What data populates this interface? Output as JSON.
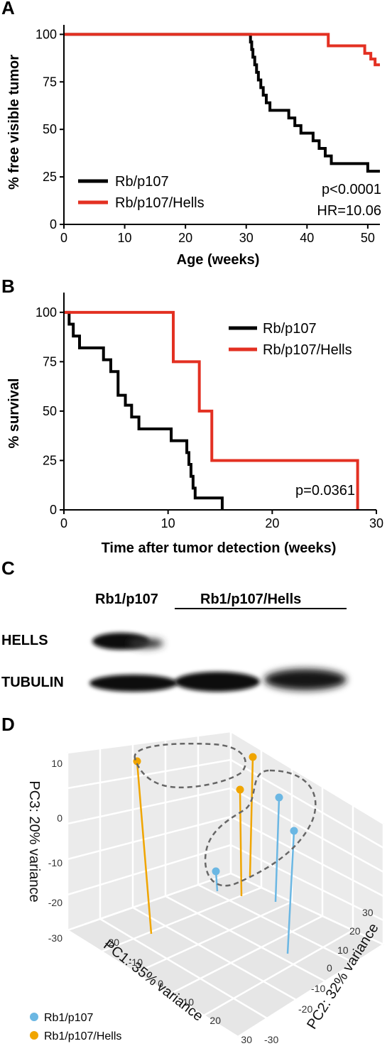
{
  "chart_data": [
    {
      "panel": "A",
      "type": "line",
      "xlabel": "Age (weeks)",
      "ylabel": "% free visible tumor",
      "xlim": [
        0,
        52
      ],
      "ylim": [
        0,
        105
      ],
      "xticks": [
        "0",
        "10",
        "20",
        "30",
        "40",
        "50"
      ],
      "yticks": [
        "0",
        "25",
        "50",
        "75",
        "100"
      ],
      "legend_position": "bottom-left",
      "series": [
        {
          "name": "Rb/p107",
          "color": "#000000",
          "x": [
            0,
            30.5,
            30.7,
            30.9,
            31.1,
            31.4,
            31.7,
            32.0,
            32.4,
            32.8,
            33.3,
            33.9,
            34.5,
            35.2,
            36.0,
            37.0,
            38.0,
            39.0,
            40.0,
            41.0,
            42.0,
            43.0,
            44.0,
            45.0,
            46.0,
            47.0,
            48.0,
            50.0,
            52.0
          ],
          "y": [
            100,
            100,
            96,
            92,
            88,
            84,
            80,
            76,
            72,
            68,
            64,
            60,
            60,
            60,
            60,
            56,
            52,
            48,
            48,
            44,
            40,
            36,
            32,
            32,
            32,
            32,
            32,
            28,
            28
          ]
        },
        {
          "name": "Rb/p107/Hells",
          "color": "#e33022",
          "x": [
            0,
            43.5,
            43.5,
            49.5,
            49.5,
            50.5,
            50.5,
            51.2,
            51.2,
            52
          ],
          "y": [
            100,
            100,
            94,
            94,
            90,
            90,
            87,
            87,
            84,
            84
          ]
        }
      ],
      "annotations": [
        "p<0.0001",
        "HR=10.06"
      ]
    },
    {
      "panel": "B",
      "type": "line",
      "xlabel": "Time after tumor detection (weeks)",
      "ylabel": "% survival",
      "xlim": [
        0,
        30
      ],
      "ylim": [
        0,
        110
      ],
      "xticks": [
        "0",
        "10",
        "20",
        "30"
      ],
      "yticks": [
        "0",
        "25",
        "50",
        "75",
        "100"
      ],
      "legend_position": "top-right",
      "series": [
        {
          "name": "Rb/p107",
          "color": "#000000",
          "x": [
            0,
            0.5,
            0.9,
            1.5,
            3.8,
            4.5,
            5.2,
            5.9,
            6.5,
            7.2,
            10.3,
            11.3,
            11.8,
            12.0,
            12.2,
            12.4,
            12.6,
            13.2,
            15.2
          ],
          "y": [
            100,
            94,
            88,
            82,
            76,
            70,
            58,
            53,
            47,
            41,
            35,
            35,
            29,
            23,
            17,
            11,
            6,
            6,
            0
          ]
        },
        {
          "name": "Rb/p107/Hells",
          "color": "#e33022",
          "x": [
            0,
            10.5,
            13.0,
            14.2,
            28.2
          ],
          "y": [
            100,
            75,
            50,
            25,
            0
          ]
        }
      ],
      "annotations": [
        "p=0.0361"
      ]
    },
    {
      "panel": "D",
      "type": "scatter",
      "projection": "3d",
      "xlabel": "PC1: 35% variance",
      "ylabel": "PC2: 32% variance",
      "zlabel": "PC3: 20% variance",
      "pc1_ticks": [
        "-20",
        "-10",
        "0",
        "10",
        "20",
        "30"
      ],
      "pc2_ticks": [
        "30",
        "20",
        "10",
        "0",
        "-10",
        "-20",
        "-30"
      ],
      "pc3_ticks": [
        "10",
        "0",
        "-10",
        "-20",
        "-30"
      ],
      "series": [
        {
          "name": "Rb1/p107",
          "color": "#6bb7e3"
        },
        {
          "name": "Rb1/p107/Hells",
          "color": "#f0a500"
        }
      ]
    }
  ],
  "panels": {
    "a": {
      "letter": "A"
    },
    "b": {
      "letter": "B"
    },
    "c": {
      "letter": "C",
      "header_left": "Rb1/p107",
      "header_right": "Rb1/p107/Hells",
      "row1": "HELLS",
      "row2": "TUBULIN"
    },
    "d": {
      "letter": "D"
    }
  }
}
